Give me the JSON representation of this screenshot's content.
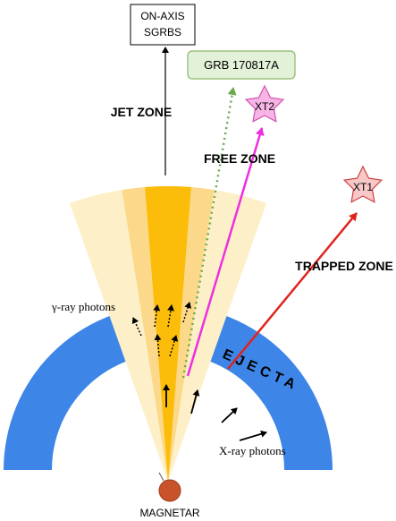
{
  "on_axis": {
    "lines": [
      "ON-AXIS",
      "SGRBS"
    ]
  },
  "grb": "GRB 170817A",
  "xt2": "XT2",
  "xt1": "XT1",
  "zones": {
    "jet": "JET ZONE",
    "free": "FREE ZONE",
    "trapped": "TRAPPED ZONE"
  },
  "gamma": "γ-ray photons",
  "ejecta": "EJECTA",
  "xray": "X-ray photons",
  "magnetar": "MAGNETAR"
}
